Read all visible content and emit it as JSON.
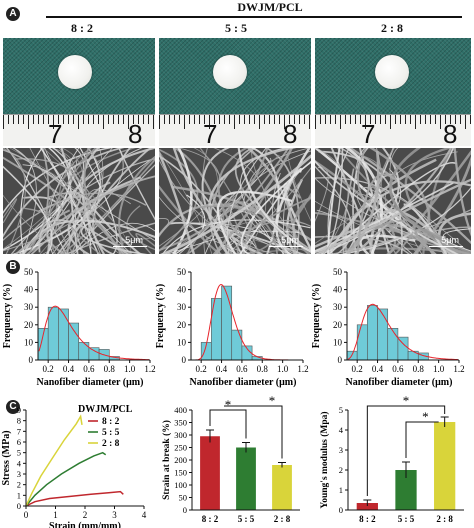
{
  "panels": {
    "a": "A",
    "b": "B",
    "c": "C"
  },
  "header": {
    "title": "DWJM/PCL"
  },
  "ratios": [
    "8 : 2",
    "5 : 5",
    "2 : 8"
  ],
  "ruler_numbers": [
    "7",
    "8"
  ],
  "scale_label": "5μm",
  "colors": {
    "fabric": "#2f6f68",
    "hist_bar": "#6fcbd8",
    "fit": "#e8242b",
    "red": "#c0272d",
    "green": "#2e7d32",
    "yellow": "#d9d43a"
  },
  "chart_data": [
    {
      "type": "bar",
      "title": "",
      "xlabel": "Nanofiber diameter (μm)",
      "ylabel": "Frequency (%)",
      "bin_edges": [
        0.1,
        0.2,
        0.3,
        0.4,
        0.5,
        0.6,
        0.7,
        0.8,
        0.9,
        1.0
      ],
      "values": [
        18,
        30,
        29,
        21,
        10,
        7,
        6,
        2,
        0
      ],
      "fit": "lognormal",
      "xticks": [
        "0.2",
        "0.4",
        "0.6",
        "0.8",
        "1.0",
        "1.2"
      ],
      "yticks": [
        "0",
        "10",
        "20",
        "30",
        "40",
        "50"
      ],
      "xlim": [
        0.1,
        1.2
      ],
      "ylim": [
        0,
        50
      ]
    },
    {
      "type": "bar",
      "title": "",
      "xlabel": "Nanofiber diameter (μm)",
      "ylabel": "Frequency (%)",
      "bin_edges": [
        0.2,
        0.3,
        0.4,
        0.5,
        0.6,
        0.7,
        0.8
      ],
      "values": [
        10,
        35,
        42,
        17,
        8,
        2
      ],
      "fit": "lognormal",
      "xticks": [
        "0.2",
        "0.4",
        "0.6",
        "0.8",
        "1.0",
        "1.2"
      ],
      "yticks": [
        "0",
        "10",
        "20",
        "30",
        "40",
        "50"
      ],
      "xlim": [
        0.1,
        1.2
      ],
      "ylim": [
        0,
        50
      ]
    },
    {
      "type": "bar",
      "title": "",
      "xlabel": "Nanofiber diameter (μm)",
      "ylabel": "Frequency (%)",
      "bin_edges": [
        0.1,
        0.2,
        0.3,
        0.4,
        0.5,
        0.6,
        0.7,
        0.8,
        0.9
      ],
      "values": [
        5,
        20,
        31,
        29,
        18,
        13,
        5,
        4
      ],
      "fit": "lognormal",
      "xticks": [
        "0.2",
        "0.4",
        "0.6",
        "0.8",
        "1.0",
        "1.2"
      ],
      "yticks": [
        "0",
        "10",
        "20",
        "30",
        "40",
        "50"
      ],
      "xlim": [
        0.1,
        1.2
      ],
      "ylim": [
        0,
        50
      ]
    },
    {
      "type": "line",
      "xlabel": "Strain (mm/mm)",
      "ylabel": "Stress (MPa)",
      "xticks": [
        "0",
        "1",
        "2",
        "3",
        "4"
      ],
      "yticks": [
        "0",
        "1",
        "2",
        "3",
        "4",
        "5",
        "6",
        "7",
        "8",
        "9"
      ],
      "xlim": [
        0,
        4
      ],
      "ylim": [
        0,
        9
      ],
      "legend_title": "DWJM/PCL",
      "series": [
        {
          "name": "8 : 2",
          "color": "#c0272d",
          "x": [
            0,
            0.3,
            0.8,
            1.5,
            2.2,
            2.8,
            3.2,
            3.3
          ],
          "y": [
            0,
            0.4,
            0.7,
            0.9,
            1.1,
            1.25,
            1.35,
            1.1
          ]
        },
        {
          "name": "5 : 5",
          "color": "#2e7d32",
          "x": [
            0,
            0.3,
            0.7,
            1.2,
            1.8,
            2.3,
            2.6,
            2.7
          ],
          "y": [
            0,
            1.0,
            2.0,
            3.0,
            4.0,
            4.7,
            5.0,
            4.8
          ]
        },
        {
          "name": "2 : 8",
          "color": "#d9d43a",
          "x": [
            0,
            0.2,
            0.5,
            0.9,
            1.3,
            1.7,
            1.85,
            1.9
          ],
          "y": [
            0,
            1.2,
            2.8,
            4.5,
            6.2,
            7.7,
            8.4,
            7.6
          ]
        }
      ]
    },
    {
      "type": "bar",
      "ylabel": "Strain at break (%)",
      "categories": [
        "8 : 2",
        "5 : 5",
        "2 : 8"
      ],
      "values": [
        295,
        250,
        180
      ],
      "errors": [
        25,
        20,
        10
      ],
      "colors": [
        "#c0272d",
        "#2e7d32",
        "#d9d43a"
      ],
      "yticks": [
        "0",
        "50",
        "100",
        "150",
        "200",
        "250",
        "300",
        "350",
        "400"
      ],
      "ylim": [
        0,
        400
      ],
      "significance": [
        "*",
        "*"
      ]
    },
    {
      "type": "bar",
      "ylabel": "Young's modulus (Mpa)",
      "categories": [
        "8 : 2",
        "5 : 5",
        "2 : 8"
      ],
      "values": [
        0.35,
        2.0,
        4.4
      ],
      "errors": [
        0.15,
        0.4,
        0.25
      ],
      "colors": [
        "#c0272d",
        "#2e7d32",
        "#d9d43a"
      ],
      "yticks": [
        "0",
        "1",
        "2",
        "3",
        "4",
        "5"
      ],
      "ylim": [
        0,
        5
      ],
      "significance": [
        "*",
        "*"
      ]
    }
  ]
}
